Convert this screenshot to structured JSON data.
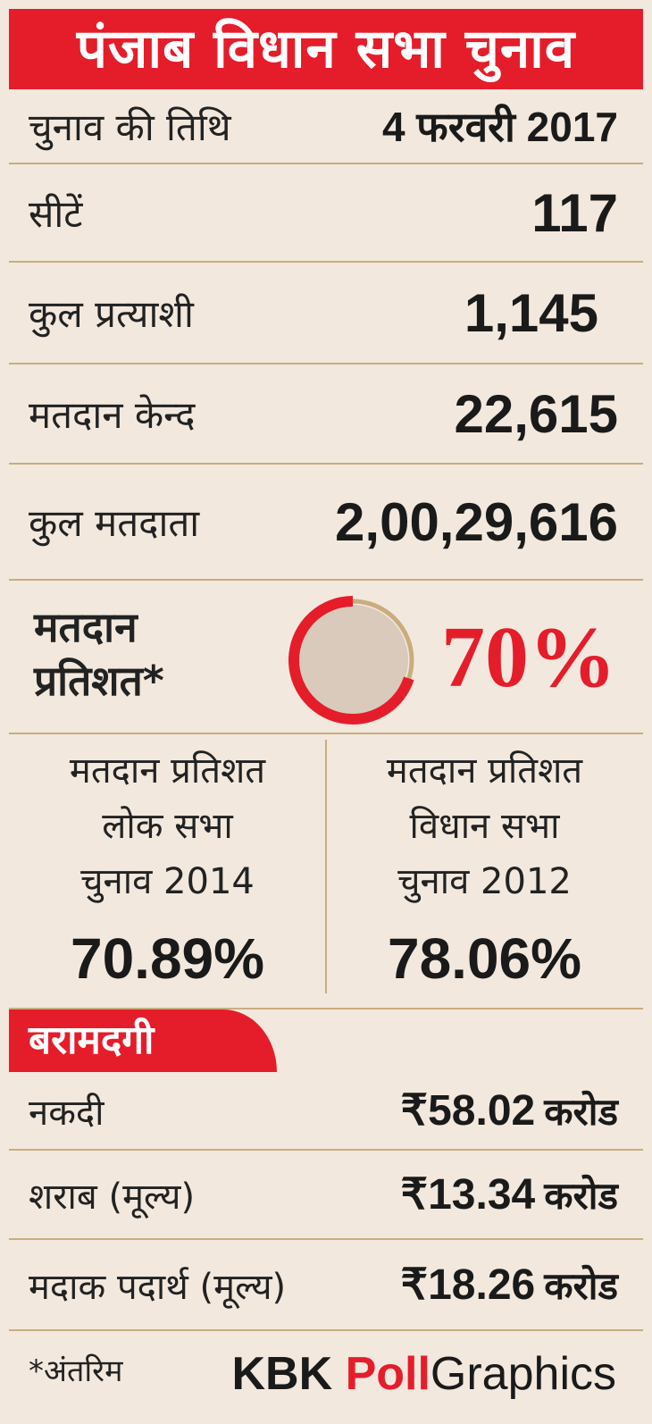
{
  "title": "पंजाब विधान सभा चुनाव",
  "facts": [
    {
      "label": "चुनाव की तिथि",
      "value": "4 फरवरी 2017"
    },
    {
      "label": "सीटें",
      "value": "117"
    },
    {
      "label": "कुल प्रत्याशी",
      "value": "1,145"
    },
    {
      "label": "मतदान केन्द",
      "value": "22,615"
    },
    {
      "label": "कुल मतदाता",
      "value": "2,00,29,616"
    }
  ],
  "turnout": {
    "label_line1": "मतदान",
    "label_line2": "प्रतिशत*",
    "value": "70%",
    "fraction": 0.7,
    "ring_color": "#e51d2b",
    "ring_rest_color": "#c9ad7e",
    "fill_color": "#d9cabb"
  },
  "comparison": [
    {
      "line1": "मतदान प्रतिशत",
      "line2": "लोक सभा",
      "line3": "चुनाव 2014",
      "value": "70.89%"
    },
    {
      "line1": "मतदान प्रतिशत",
      "line2": "विधान सभा",
      "line3": "चुनाव 2012",
      "value": "78.06%"
    }
  ],
  "recovery": {
    "heading": "बरामदगी",
    "items": [
      {
        "label": "नकदी",
        "amount": "₹58.02",
        "unit": "करोड"
      },
      {
        "label": "शराब (मूल्य)",
        "amount": "₹13.34",
        "unit": "करोड"
      },
      {
        "label": "मदाक पदार्थ (मूल्य)",
        "amount": "₹18.26",
        "unit": "करोड"
      }
    ]
  },
  "footer": {
    "note": "*अंतरिम",
    "brand_a": "KBK ",
    "brand_b": "Poll",
    "brand_c": "Graphics"
  },
  "colors": {
    "accent": "#e51d2b",
    "background": "#f2e8de",
    "rule": "#c9ad7e"
  }
}
